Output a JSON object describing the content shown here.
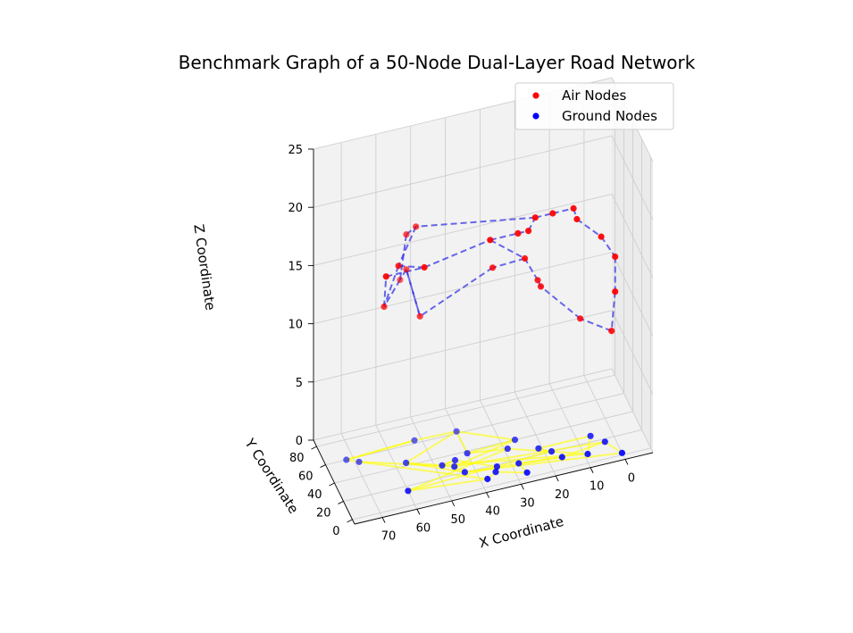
{
  "chart_data": {
    "type": "scatter",
    "projection": "3d",
    "title": "Benchmark Graph of a 50-Node Dual-Layer Road Network",
    "xlabel": "X Coordinate",
    "ylabel": "Y Coordinate",
    "zlabel": "Z Coordinate",
    "xlim": [
      -8,
      78
    ],
    "ylim": [
      -5,
      87
    ],
    "zlim": [
      0,
      25
    ],
    "xticks": [
      0,
      10,
      20,
      30,
      40,
      50,
      60,
      70
    ],
    "yticks": [
      0,
      20,
      40,
      60,
      80
    ],
    "zticks": [
      0,
      5,
      10,
      15,
      20,
      25
    ],
    "grid": true,
    "legend_position": "top-right",
    "series": [
      {
        "name": "Air Nodes",
        "marker_color": "#ff0000",
        "edge_color": "#2a2ae6",
        "edge_style": "dashed",
        "points": [
          [
            68,
            2,
            20
          ],
          [
            57,
            2,
            20
          ],
          [
            38,
            2,
            21
          ],
          [
            30,
            2,
            21
          ],
          [
            27,
            2,
            21
          ],
          [
            25,
            2,
            22
          ],
          [
            20,
            2,
            22
          ],
          [
            14,
            2,
            22
          ],
          [
            13,
            2,
            21
          ],
          [
            6,
            2,
            19
          ],
          [
            2,
            2,
            17
          ],
          [
            2,
            2,
            14
          ],
          [
            2,
            10,
            10
          ],
          [
            10,
            18,
            11
          ],
          [
            22,
            13,
            15
          ],
          [
            22,
            20,
            15
          ],
          [
            27,
            10,
            18
          ],
          [
            35,
            20,
            17
          ],
          [
            54,
            35,
            13
          ],
          [
            56,
            50,
            16
          ],
          [
            56,
            64,
            14
          ],
          [
            56,
            50,
            19
          ],
          [
            54,
            44,
            20
          ],
          [
            62,
            21,
            19
          ],
          [
            65,
            30,
            15
          ]
        ],
        "edges": [
          [
            0,
            1
          ],
          [
            1,
            2
          ],
          [
            2,
            3
          ],
          [
            3,
            4
          ],
          [
            4,
            5
          ],
          [
            5,
            6
          ],
          [
            6,
            7
          ],
          [
            7,
            8
          ],
          [
            8,
            9
          ],
          [
            9,
            10
          ],
          [
            10,
            11
          ],
          [
            11,
            12
          ],
          [
            12,
            13
          ],
          [
            13,
            14
          ],
          [
            14,
            15
          ],
          [
            15,
            16
          ],
          [
            16,
            17
          ],
          [
            17,
            18
          ],
          [
            18,
            19
          ],
          [
            19,
            20
          ],
          [
            20,
            21
          ],
          [
            21,
            22
          ],
          [
            22,
            23
          ],
          [
            23,
            24
          ],
          [
            24,
            0
          ],
          [
            2,
            16
          ],
          [
            5,
            22
          ],
          [
            1,
            23
          ],
          [
            19,
            18
          ],
          [
            20,
            24
          ]
        ]
      },
      {
        "name": "Ground Nodes",
        "marker_color": "#0000ff",
        "edge_color": "#ffff00",
        "edge_style": "solid",
        "points": [
          [
            0,
            2,
            0
          ],
          [
            3,
            17,
            0
          ],
          [
            16,
            12,
            0
          ],
          [
            28,
            16,
            0
          ],
          [
            27,
            5,
            0
          ],
          [
            35,
            13,
            0
          ],
          [
            34,
            18,
            0
          ],
          [
            44,
            34,
            0
          ],
          [
            48,
            32,
            0
          ],
          [
            57,
            43,
            0
          ],
          [
            43,
            20,
            0
          ],
          [
            45,
            28,
            0
          ],
          [
            26,
            40,
            0
          ],
          [
            40,
            62,
            0
          ],
          [
            52,
            63,
            0
          ],
          [
            72,
            60,
            0
          ],
          [
            69,
            55,
            0
          ],
          [
            38,
            8,
            0
          ],
          [
            60,
            15,
            0
          ],
          [
            18,
            20,
            0
          ],
          [
            21,
            26,
            0
          ],
          [
            6,
            26,
            0
          ],
          [
            9,
            9,
            0
          ],
          [
            29,
            33,
            0
          ],
          [
            40,
            38,
            0
          ]
        ],
        "edges": [
          [
            0,
            1
          ],
          [
            1,
            2
          ],
          [
            2,
            3
          ],
          [
            3,
            4
          ],
          [
            4,
            5
          ],
          [
            5,
            6
          ],
          [
            6,
            7
          ],
          [
            7,
            8
          ],
          [
            8,
            9
          ],
          [
            9,
            10
          ],
          [
            10,
            11
          ],
          [
            11,
            12
          ],
          [
            12,
            13
          ],
          [
            13,
            14
          ],
          [
            14,
            15
          ],
          [
            15,
            16
          ],
          [
            16,
            17
          ],
          [
            17,
            18
          ],
          [
            18,
            19
          ],
          [
            19,
            20
          ],
          [
            20,
            21
          ],
          [
            21,
            22
          ],
          [
            22,
            23
          ],
          [
            23,
            24
          ],
          [
            24,
            12
          ],
          [
            0,
            10
          ],
          [
            1,
            11
          ],
          [
            2,
            10
          ],
          [
            16,
            11
          ],
          [
            13,
            9
          ],
          [
            18,
            23
          ],
          [
            22,
            8
          ],
          [
            15,
            14
          ],
          [
            17,
            5
          ],
          [
            24,
            13
          ],
          [
            8,
            7
          ]
        ]
      }
    ]
  }
}
